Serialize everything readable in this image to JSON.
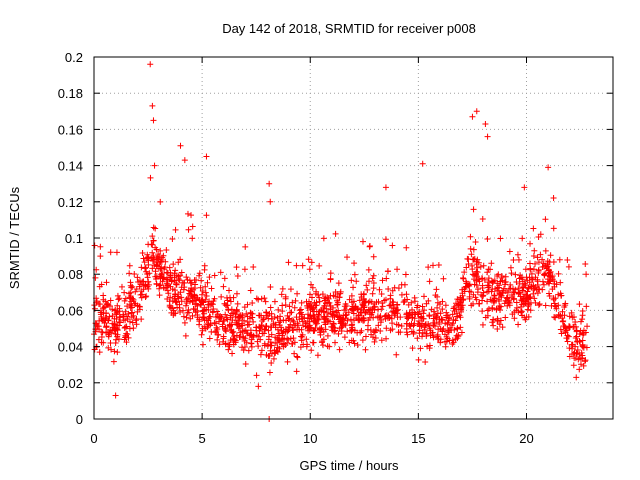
{
  "chart_data": {
    "type": "scatter",
    "title": "Day 142 of 2018, SRMTID for receiver p008",
    "xlabel": "GPS time / hours",
    "ylabel": "SRMTID / TECUs",
    "xlim": [
      0,
      24
    ],
    "ylim": [
      0,
      0.2
    ],
    "xticks": [
      0,
      5,
      10,
      15,
      20
    ],
    "xtick_labels": [
      "0",
      "5",
      "10",
      "15",
      "20"
    ],
    "yticks": [
      0,
      0.02,
      0.04,
      0.06,
      0.08,
      0.1,
      0.12,
      0.14,
      0.16,
      0.18,
      0.2
    ],
    "ytick_labels": [
      "0",
      "0.02",
      "0.04",
      "0.06",
      "0.08",
      "0.1",
      "0.12",
      "0.14",
      "0.16",
      "0.18",
      "0.2"
    ],
    "grid": true,
    "marker": "+",
    "color": "#ff0000",
    "x_range_data": [
      0,
      22.8
    ],
    "baseline_trend": [
      {
        "x": 0.0,
        "y": 0.055
      },
      {
        "x": 1.0,
        "y": 0.052
      },
      {
        "x": 2.0,
        "y": 0.065
      },
      {
        "x": 2.7,
        "y": 0.09
      },
      {
        "x": 3.5,
        "y": 0.075
      },
      {
        "x": 4.5,
        "y": 0.065
      },
      {
        "x": 6.0,
        "y": 0.055
      },
      {
        "x": 7.5,
        "y": 0.048
      },
      {
        "x": 9.0,
        "y": 0.05
      },
      {
        "x": 10.0,
        "y": 0.055
      },
      {
        "x": 12.0,
        "y": 0.058
      },
      {
        "x": 14.0,
        "y": 0.06
      },
      {
        "x": 15.0,
        "y": 0.055
      },
      {
        "x": 16.5,
        "y": 0.05
      },
      {
        "x": 17.5,
        "y": 0.08
      },
      {
        "x": 18.5,
        "y": 0.065
      },
      {
        "x": 20.0,
        "y": 0.07
      },
      {
        "x": 21.0,
        "y": 0.08
      },
      {
        "x": 22.0,
        "y": 0.045
      },
      {
        "x": 22.8,
        "y": 0.04
      }
    ],
    "notable_points": [
      {
        "x": 2.6,
        "y": 0.196
      },
      {
        "x": 2.7,
        "y": 0.173
      },
      {
        "x": 2.75,
        "y": 0.165
      },
      {
        "x": 2.8,
        "y": 0.14
      },
      {
        "x": 4.0,
        "y": 0.151
      },
      {
        "x": 4.2,
        "y": 0.143
      },
      {
        "x": 5.2,
        "y": 0.145
      },
      {
        "x": 8.1,
        "y": 0.13
      },
      {
        "x": 8.15,
        "y": 0.12
      },
      {
        "x": 13.5,
        "y": 0.128
      },
      {
        "x": 15.2,
        "y": 0.141
      },
      {
        "x": 17.5,
        "y": 0.167
      },
      {
        "x": 17.7,
        "y": 0.17
      },
      {
        "x": 18.1,
        "y": 0.163
      },
      {
        "x": 18.2,
        "y": 0.156
      },
      {
        "x": 19.9,
        "y": 0.128
      },
      {
        "x": 21.0,
        "y": 0.139
      },
      {
        "x": 1.0,
        "y": 0.013
      },
      {
        "x": 7.6,
        "y": 0.018
      },
      {
        "x": 22.3,
        "y": 0.023
      },
      {
        "x": 8.1,
        "y": 0.0
      }
    ],
    "point_count": 1900
  }
}
